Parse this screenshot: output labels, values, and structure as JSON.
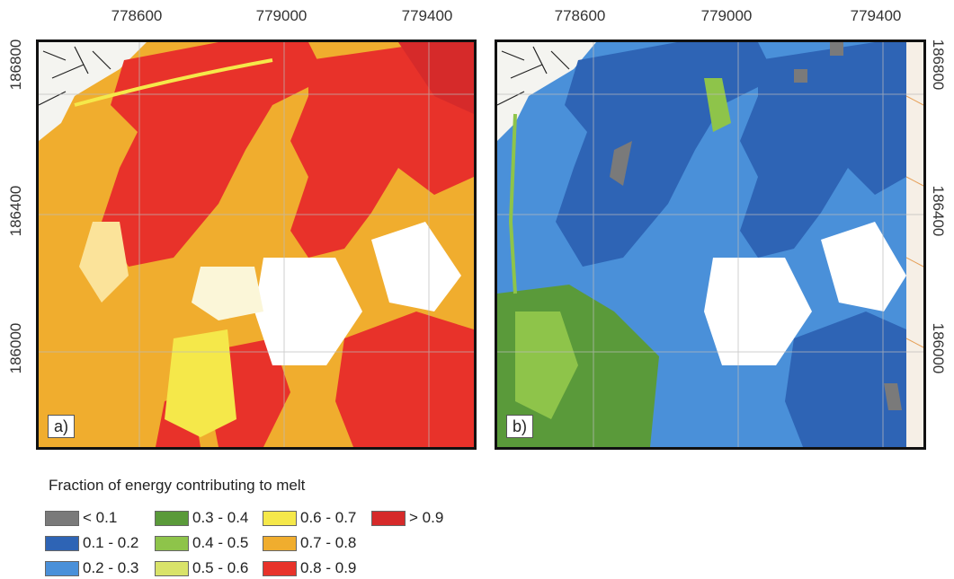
{
  "x_ticks": [
    "778600",
    "779000",
    "779400"
  ],
  "y_ticks": [
    "186800",
    "186400",
    "186000"
  ],
  "panels": [
    {
      "label": "a)",
      "dominant_class": "0.7 - 0.8"
    },
    {
      "label": "b)",
      "dominant_class": "0.2 - 0.3"
    }
  ],
  "legend": {
    "title": "Fraction of energy contributing to melt",
    "items": [
      {
        "label": "< 0.1",
        "color": "#7a7a7a"
      },
      {
        "label": "0.1 - 0.2",
        "color": "#2e64b5"
      },
      {
        "label": "0.2 - 0.3",
        "color": "#4a90d9"
      },
      {
        "label": "0.3 - 0.4",
        "color": "#5a9a3a"
      },
      {
        "label": "0.4 - 0.5",
        "color": "#8ec44a"
      },
      {
        "label": "0.5 - 0.6",
        "color": "#d9e36a"
      },
      {
        "label": "0.6 - 0.7",
        "color": "#f5e84a"
      },
      {
        "label": "0.7 - 0.8",
        "color": "#f0ad2e"
      },
      {
        "label": "0.8 - 0.9",
        "color": "#e8322a"
      },
      {
        "label": "> 0.9",
        "color": "#d62a2a"
      }
    ]
  }
}
